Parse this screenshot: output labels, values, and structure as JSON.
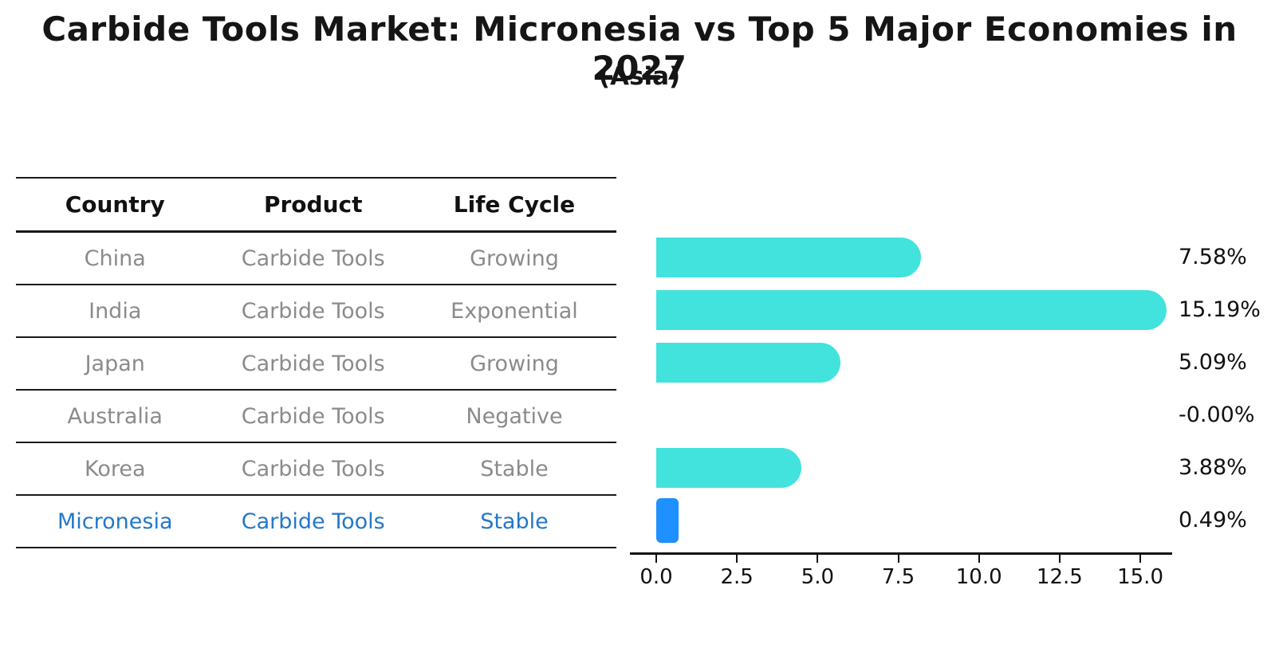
{
  "header": {
    "title": "Carbide Tools Market: Micronesia vs Top 5 Major Economies in 2027",
    "subtitle": "(Asia)"
  },
  "table": {
    "headers": [
      "Country",
      "Product",
      "Life Cycle"
    ],
    "rows": [
      {
        "country": "China",
        "product": "Carbide Tools",
        "life_cycle": "Growing"
      },
      {
        "country": "India",
        "product": "Carbide Tools",
        "life_cycle": "Exponential"
      },
      {
        "country": "Japan",
        "product": "Carbide Tools",
        "life_cycle": "Growing"
      },
      {
        "country": "Australia",
        "product": "Carbide Tools",
        "life_cycle": "Negative"
      },
      {
        "country": "Korea",
        "product": "Carbide Tools",
        "life_cycle": "Stable"
      },
      {
        "country": "Micronesia",
        "product": "Carbide Tools",
        "life_cycle": "Stable"
      }
    ],
    "highlight_row": "Micronesia"
  },
  "chart_data": {
    "type": "bar",
    "orientation": "horizontal",
    "title": "Carbide Tools Market: Micronesia vs Top 5 Major Economies in 2027",
    "subtitle": "(Asia)",
    "categories": [
      "China",
      "India",
      "Japan",
      "Australia",
      "Korea",
      "Micronesia"
    ],
    "values": [
      7.58,
      15.19,
      5.09,
      -0.0,
      3.88,
      0.49
    ],
    "value_labels": [
      "7.58%",
      "15.19%",
      "5.09%",
      "-0.00%",
      "3.88%",
      "0.49%"
    ],
    "xticks": [
      0.0,
      2.5,
      5.0,
      7.5,
      10.0,
      12.5,
      15.0
    ],
    "xticklabels": [
      "0.0",
      "2.5",
      "5.0",
      "7.5",
      "10.0",
      "12.5",
      "15.0"
    ],
    "xlim": [
      0,
      16
    ],
    "grid": false,
    "legend": false,
    "highlight_index": 5
  },
  "colors": {
    "bar": "#41E3DC",
    "highlight_bar": "#1E90FF",
    "highlight_text": "#2478C8",
    "table_text": "#8b8b8b",
    "text": "#111111"
  }
}
